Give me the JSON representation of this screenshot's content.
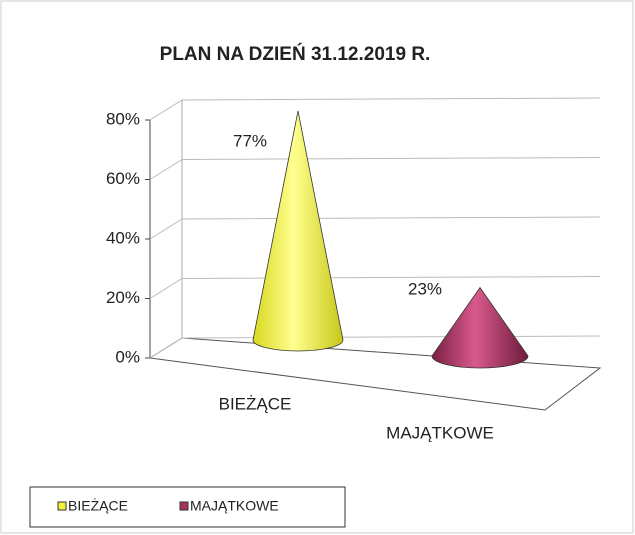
{
  "chart_data": {
    "type": "cone",
    "title": "PLAN NA DZIEŃ 31.12.2019 R.",
    "categories": [
      "BIEŻĄCE",
      "MAJĄTKOWE"
    ],
    "series": [
      {
        "name": "BIEŻĄCE",
        "color": "#f2f23a"
      },
      {
        "name": "MAJĄTKOWE",
        "color": "#a8325e"
      }
    ],
    "values": [
      77,
      23
    ],
    "value_labels": [
      "77%",
      "23%"
    ],
    "ylim": [
      0,
      80
    ],
    "yticks": [
      {
        "value": 0,
        "label": "0%"
      },
      {
        "value": 20,
        "label": "20%"
      },
      {
        "value": 40,
        "label": "40%"
      },
      {
        "value": 60,
        "label": "60%"
      },
      {
        "value": 80,
        "label": "80%"
      }
    ],
    "grid": true,
    "legend": "bottom-left"
  }
}
